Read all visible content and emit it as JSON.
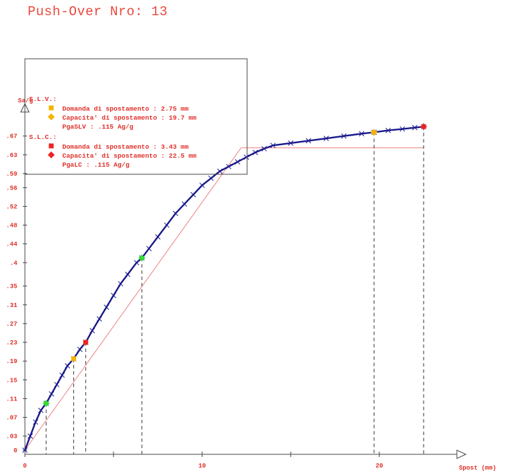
{
  "title": "Push-Over Nro: 13",
  "chart_data": {
    "type": "line",
    "xlabel": "Spost (mm)",
    "ylabel": "Sa/g",
    "xlim": [
      0,
      25
    ],
    "ylim": [
      -0.01,
      0.7
    ],
    "x_ticks": [
      0,
      10,
      20
    ],
    "x_tick_labels": [
      "0",
      "10",
      "20"
    ],
    "x_minor_ticks": [
      5,
      15
    ],
    "y_ticks": [
      0,
      0.03,
      0.07,
      0.11,
      0.15,
      0.19,
      0.23,
      0.27,
      0.31,
      0.35,
      0.4,
      0.44,
      0.48,
      0.52,
      0.56,
      0.59,
      0.63,
      0.67
    ],
    "y_tick_labels": [
      "0",
      ".03",
      ".07",
      ".11",
      ".15",
      ".19",
      ".23",
      ".27",
      ".31",
      ".35",
      ".4",
      ".44",
      ".48",
      ".52",
      ".56",
      ".59",
      ".63",
      ".67"
    ],
    "curve": {
      "color": "#1a1a8c",
      "x": [
        0,
        0.3,
        0.6,
        0.9,
        1.2,
        1.5,
        1.8,
        2.1,
        2.4,
        2.75,
        3.1,
        3.43,
        3.8,
        4.2,
        4.6,
        5.0,
        5.4,
        5.8,
        6.3,
        6.6,
        7.0,
        7.5,
        8.0,
        8.5,
        9.0,
        9.5,
        10.0,
        10.5,
        11.0,
        11.5,
        12.0,
        12.5,
        13.0,
        13.5,
        14.0,
        15.0,
        16.0,
        17.0,
        18.0,
        19.0,
        19.7,
        20.5,
        21.3,
        22.0,
        22.5
      ],
      "y": [
        0,
        0.03,
        0.06,
        0.085,
        0.1,
        0.12,
        0.14,
        0.16,
        0.18,
        0.195,
        0.215,
        0.23,
        0.255,
        0.28,
        0.305,
        0.33,
        0.355,
        0.375,
        0.4,
        0.41,
        0.43,
        0.455,
        0.48,
        0.505,
        0.525,
        0.545,
        0.565,
        0.58,
        0.595,
        0.605,
        0.615,
        0.625,
        0.635,
        0.643,
        0.65,
        0.655,
        0.66,
        0.665,
        0.67,
        0.675,
        0.678,
        0.682,
        0.685,
        0.688,
        0.69
      ]
    },
    "bilinear_lines": [
      {
        "color": "#f08080",
        "x": [
          0,
          12.2
        ],
        "y": [
          0,
          0.645
        ]
      },
      {
        "color": "#f08080",
        "x": [
          12.2,
          22.5
        ],
        "y": [
          0.645,
          0.645
        ]
      }
    ],
    "points": [
      {
        "x": 1.2,
        "y": 0.1,
        "color": "#33dd33",
        "shape": "diamond"
      },
      {
        "x": 6.6,
        "y": 0.41,
        "color": "#33dd33",
        "shape": "diamond"
      },
      {
        "x": 2.75,
        "y": 0.195,
        "color": "#f5b400",
        "shape": "square"
      },
      {
        "x": 19.7,
        "y": 0.678,
        "color": "#f5b400",
        "shape": "diamond"
      },
      {
        "x": 3.43,
        "y": 0.23,
        "color": "#ee2222",
        "shape": "square"
      },
      {
        "x": 22.5,
        "y": 0.69,
        "color": "#ee2222",
        "shape": "diamond"
      }
    ],
    "legend": {
      "placement": "top-left",
      "items": [
        {
          "type": "heading",
          "text": "S.L.V.:"
        },
        {
          "type": "entry",
          "symbol": "square",
          "color": "#f5b400",
          "text": "Domanda di spostamento : 2.75 mm"
        },
        {
          "type": "entry",
          "symbol": "diamond",
          "color": "#f5b400",
          "text": "Capacita' di spostamento : 19.7 mm"
        },
        {
          "type": "note",
          "text": "PgaSLV :  .115 Ag/g"
        },
        {
          "type": "heading",
          "text": "S.L.C.:"
        },
        {
          "type": "entry",
          "symbol": "square",
          "color": "#ee2222",
          "text": "Domanda di spostamento : 3.43 mm"
        },
        {
          "type": "entry",
          "symbol": "diamond",
          "color": "#ee2222",
          "text": "Capacita' di spostamento : 22.5 mm"
        },
        {
          "type": "note",
          "text": "PgaLC :  .115 Ag/g"
        }
      ]
    }
  }
}
